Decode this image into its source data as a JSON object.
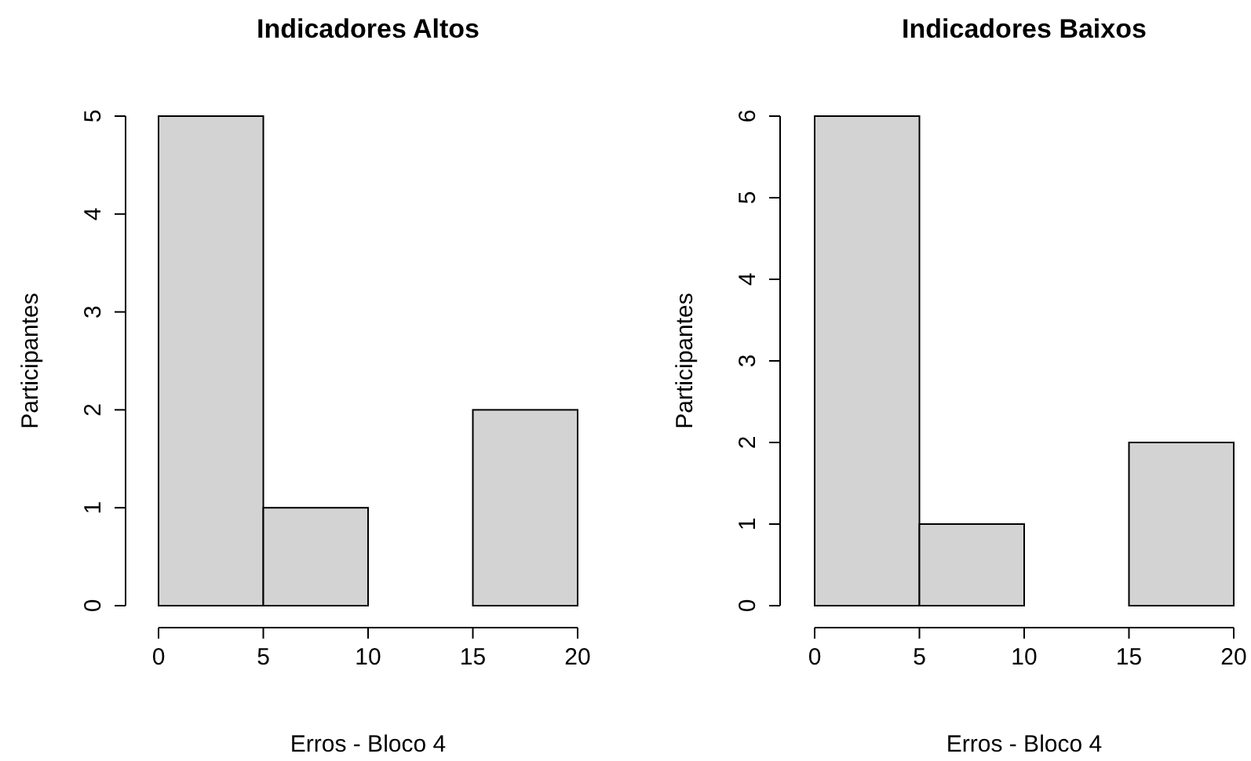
{
  "chart_data": [
    {
      "type": "histogram",
      "title": "Indicadores Altos",
      "xlabel": "Erros - Bloco 4",
      "ylabel": "Participantes",
      "bins": [
        0,
        5,
        10,
        15,
        20
      ],
      "values": [
        5,
        1,
        0,
        2
      ],
      "color": "#d3d3d3",
      "xlim": [
        0,
        20
      ],
      "xticks": [
        0,
        5,
        10,
        15,
        20
      ],
      "ylim": [
        0,
        5
      ],
      "yticks": [
        0,
        1,
        2,
        3,
        4,
        5
      ]
    },
    {
      "type": "histogram",
      "title": "Indicadores Baixos",
      "xlabel": "Erros - Bloco 4",
      "ylabel": "Participantes",
      "bins": [
        0,
        5,
        10,
        15,
        20
      ],
      "values": [
        6,
        1,
        0,
        2
      ],
      "color": "#d3d3d3",
      "xlim": [
        0,
        20
      ],
      "xticks": [
        0,
        5,
        10,
        15,
        20
      ],
      "ylim": [
        0,
        6
      ],
      "yticks": [
        0,
        1,
        2,
        3,
        4,
        5,
        6
      ]
    }
  ]
}
